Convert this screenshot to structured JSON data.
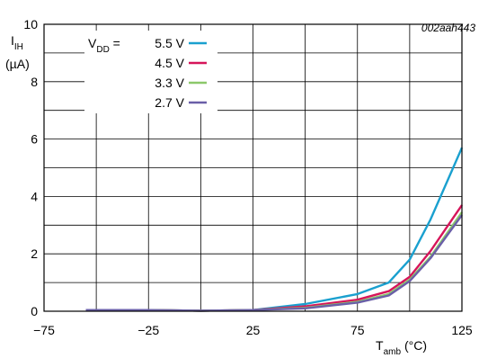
{
  "chart_data": {
    "type": "line",
    "figure_id": "002aah443",
    "ylabel_main": "I",
    "ylabel_sub": "IH",
    "ylabel_unit": "(µA)",
    "xlabel_main": "T",
    "xlabel_sub": "amb",
    "xlabel_unit": "(°C)",
    "xlim": [
      -75,
      125
    ],
    "ylim": [
      0,
      10
    ],
    "xticks": [
      -75,
      -25,
      25,
      75,
      125
    ],
    "yticks": [
      0,
      2,
      4,
      6,
      8,
      10
    ],
    "grid": true,
    "legend_position": "top-left",
    "legend_prefix": "V",
    "legend_prefix_sub": "DD",
    "legend_prefix_eq": " = ",
    "series": [
      {
        "name": "5.5 V",
        "color": "#1aa0cf",
        "x": [
          -55,
          -25,
          0,
          25,
          50,
          75,
          90,
          100,
          110,
          125
        ],
        "y": [
          0.04,
          0.04,
          0.02,
          0.04,
          0.25,
          0.6,
          1.0,
          1.8,
          3.2,
          5.7
        ]
      },
      {
        "name": "4.5 V",
        "color": "#d6155a",
        "x": [
          -55,
          -25,
          0,
          25,
          50,
          75,
          90,
          100,
          110,
          125
        ],
        "y": [
          0.04,
          0.04,
          0.02,
          0.04,
          0.17,
          0.4,
          0.7,
          1.2,
          2.1,
          3.7
        ]
      },
      {
        "name": "3.3 V",
        "color": "#8cc86a",
        "x": [
          -55,
          -25,
          0,
          25,
          50,
          75,
          90,
          100,
          110,
          125
        ],
        "y": [
          0.04,
          0.04,
          0.02,
          0.04,
          0.12,
          0.33,
          0.6,
          1.1,
          1.9,
          3.45
        ]
      },
      {
        "name": "2.7 V",
        "color": "#6a5fa8",
        "x": [
          -55,
          -25,
          0,
          25,
          50,
          75,
          90,
          100,
          110,
          125
        ],
        "y": [
          0.04,
          0.04,
          0.02,
          0.04,
          0.1,
          0.3,
          0.55,
          1.05,
          1.85,
          3.35
        ]
      }
    ]
  }
}
